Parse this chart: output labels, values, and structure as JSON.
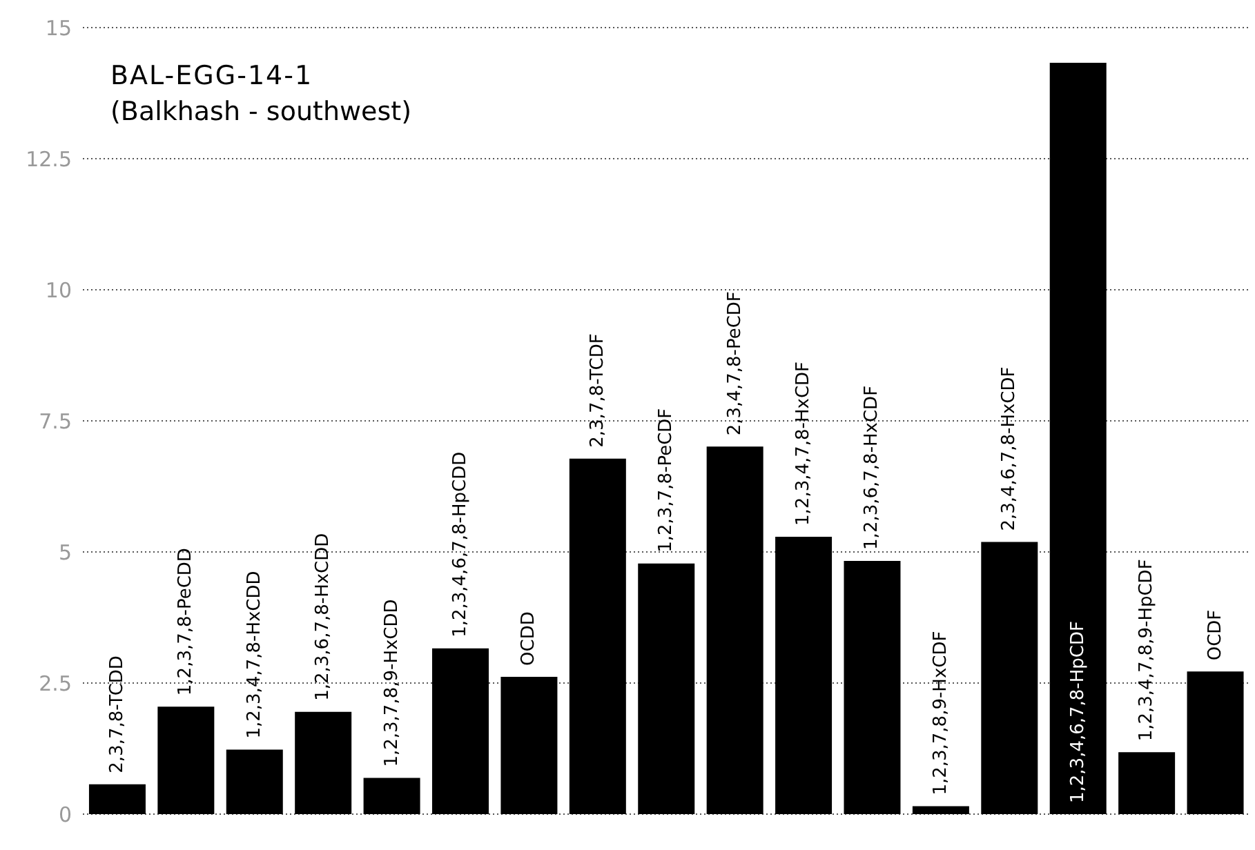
{
  "chart_data": {
    "type": "bar",
    "title": "BAL-EGG-14-1",
    "subtitle": "(Balkhash - southwest)",
    "categories": [
      "2,3,7,8-TCDD",
      "1,2,3,7,8-PeCDD",
      "1,2,3,4,7,8-HxCDD",
      "1,2,3,6,7,8-HxCDD",
      "1,2,3,7,8,9-HxCDD",
      "1,2,3,4,6,7,8-HpCDD",
      "OCDD",
      "2,3,7,8-TCDF",
      "1,2,3,7,8-PeCDF",
      "2,3,4,7,8-PeCDF",
      "1,2,3,4,7,8-HxCDF",
      "1,2,3,6,7,8-HxCDF",
      "1,2,3,7,8,9-HxCDF",
      "2,3,4,6,7,8-HxCDF",
      "1,2,3,4,6,7,8-HpCDF",
      "1,2,3,4,7,8,9-HpCDF",
      "OCDF"
    ],
    "values": [
      0.57,
      2.05,
      1.23,
      1.95,
      0.69,
      3.16,
      2.62,
      6.78,
      4.78,
      7.01,
      5.29,
      4.83,
      0.15,
      5.19,
      14.33,
      1.18,
      2.72
    ],
    "color": "#000000",
    "ylim": [
      0,
      15
    ],
    "yticks": [
      0,
      2.5,
      5,
      7.5,
      10,
      12.5,
      15
    ],
    "grid": "y"
  }
}
